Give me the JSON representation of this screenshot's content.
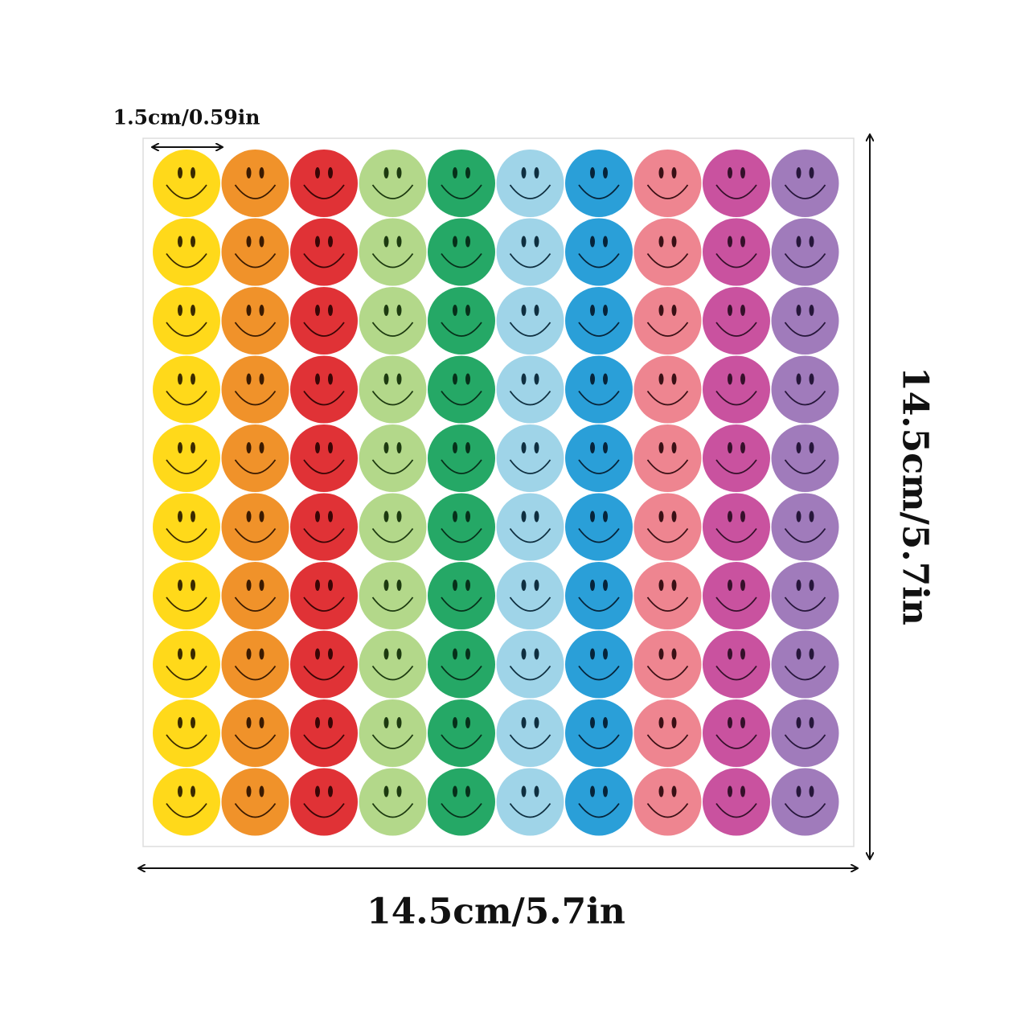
{
  "sticker_size_label": "1.5cm/0.59in",
  "sheet_width_label": "14.5cm/5.7in",
  "sheet_height_label": "14.5cm/5.7in"
}
